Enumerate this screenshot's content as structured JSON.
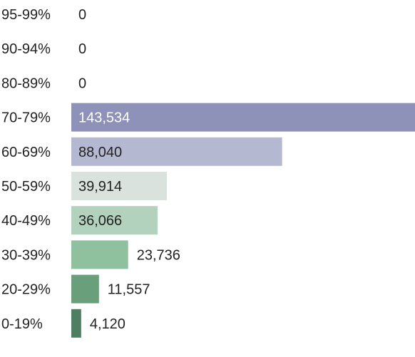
{
  "chart_data": {
    "type": "bar",
    "orientation": "horizontal",
    "categories": [
      "95-99%",
      "90-94%",
      "80-89%",
      "70-79%",
      "60-69%",
      "50-59%",
      "40-49%",
      "30-39%",
      "20-29%",
      "0-19%"
    ],
    "values": [
      0,
      0,
      0,
      143534,
      88040,
      39914,
      36066,
      23736,
      11557,
      4120
    ],
    "value_labels": [
      "0",
      "0",
      "0",
      "143,534",
      "88,040",
      "39,914",
      "36,066",
      "23,736",
      "11,557",
      "4,120"
    ],
    "colors": [
      "#8f92b8",
      "#8f92b8",
      "#8f92b8",
      "#8f92b8",
      "#b5b8d1",
      "#d9e2dc",
      "#b3d2bd",
      "#90c19e",
      "#6a9f7b",
      "#4e7f60"
    ],
    "xlim": [
      0,
      143534
    ],
    "grid": false,
    "legend": "none"
  }
}
